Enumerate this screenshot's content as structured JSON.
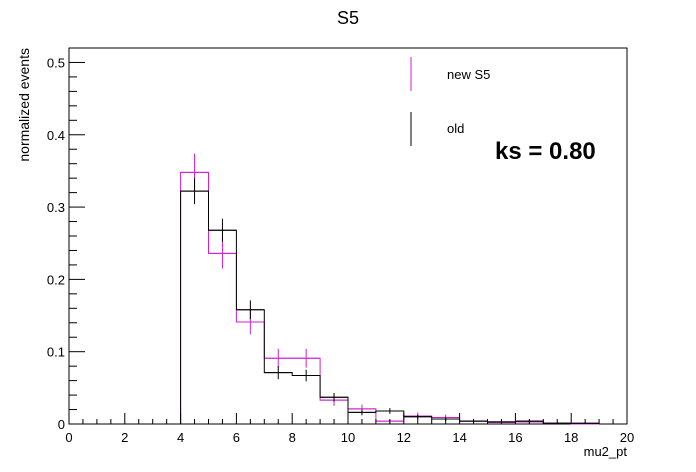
{
  "chart_data": {
    "type": "histogram",
    "title": "S5",
    "xlabel": "mu2_pt",
    "ylabel": "normalized events",
    "xlim": [
      0,
      20
    ],
    "ylim": [
      0,
      0.52
    ],
    "x_ticks": [
      0,
      2,
      4,
      6,
      8,
      10,
      12,
      14,
      16,
      18,
      20
    ],
    "y_ticks": [
      0,
      0.1,
      0.2,
      0.3,
      0.4,
      0.5
    ],
    "bin_edges": [
      4,
      5,
      6,
      7,
      8,
      9,
      10,
      11,
      12,
      13,
      14,
      15,
      16,
      17,
      18,
      19
    ],
    "series": [
      {
        "name": "new S5",
        "color": "#d020d0",
        "values": [
          0.348,
          0.236,
          0.141,
          0.091,
          0.091,
          0.033,
          0.021,
          0.004,
          0.011,
          0.009,
          0.004,
          0.002,
          0.003,
          0.001,
          0.0
        ],
        "errors": [
          0.026,
          0.021,
          0.017,
          0.013,
          0.013,
          0.008,
          0.006,
          0.003,
          0.005,
          0.004,
          0.003,
          0.002,
          0.002,
          0.001,
          0.0
        ]
      },
      {
        "name": "old",
        "color": "#000000",
        "values": [
          0.322,
          0.268,
          0.158,
          0.071,
          0.067,
          0.037,
          0.016,
          0.018,
          0.01,
          0.007,
          0.004,
          0.003,
          0.004,
          0.001,
          0.001
        ],
        "errors": [
          0.018,
          0.016,
          0.013,
          0.009,
          0.008,
          0.006,
          0.004,
          0.004,
          0.003,
          0.003,
          0.002,
          0.002,
          0.002,
          0.001,
          0.001
        ]
      }
    ],
    "legend_position": "top-right",
    "annotation": "ks = 0.80"
  }
}
